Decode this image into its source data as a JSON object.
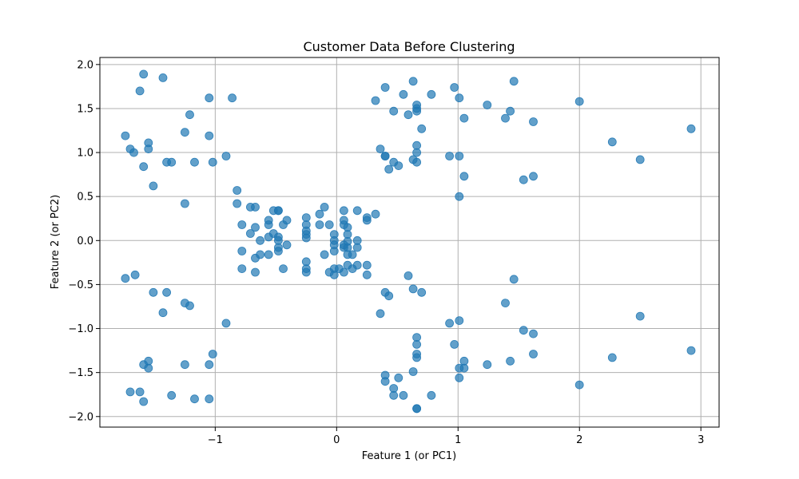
{
  "chart_data": {
    "type": "scatter",
    "title": "Customer Data Before Clustering",
    "xlabel": "Feature 1 (or PC1)",
    "ylabel": "Feature 2 (or PC2)",
    "xlim": [
      -1.95,
      3.15
    ],
    "ylim": [
      -2.12,
      2.08
    ],
    "xticks": [
      -1,
      0,
      1,
      2,
      3
    ],
    "xtick_labels": [
      "−1",
      "0",
      "1",
      "2",
      "3"
    ],
    "yticks": [
      -2.0,
      -1.5,
      -1.0,
      -0.5,
      0.0,
      0.5,
      1.0,
      1.5,
      2.0
    ],
    "ytick_labels": [
      "−2.0",
      "−1.5",
      "−1.0",
      "−0.5",
      "0.0",
      "0.5",
      "1.0",
      "1.5",
      "2.0"
    ],
    "grid": true,
    "legend": "none",
    "point_color": "#1f77b4",
    "point_opacity": 0.7,
    "points": [
      [
        -1.59,
        1.89
      ],
      [
        -1.43,
        1.85
      ],
      [
        -1.62,
        1.7
      ],
      [
        -1.05,
        1.62
      ],
      [
        -0.86,
        1.62
      ],
      [
        -1.21,
        1.43
      ],
      [
        -1.25,
        1.23
      ],
      [
        -1.05,
        1.19
      ],
      [
        -1.74,
        1.19
      ],
      [
        -1.55,
        1.11
      ],
      [
        -1.7,
        1.04
      ],
      [
        -1.55,
        1.04
      ],
      [
        -1.67,
        1.0
      ],
      [
        -0.91,
        0.96
      ],
      [
        -1.4,
        0.89
      ],
      [
        -1.36,
        0.89
      ],
      [
        -1.17,
        0.89
      ],
      [
        -1.02,
        0.89
      ],
      [
        -1.59,
        0.84
      ],
      [
        -1.51,
        0.62
      ],
      [
        -1.25,
        0.42
      ],
      [
        -1.74,
        -0.43
      ],
      [
        -1.66,
        -0.39
      ],
      [
        -1.51,
        -0.59
      ],
      [
        -1.4,
        -0.59
      ],
      [
        -1.25,
        -0.71
      ],
      [
        -1.21,
        -0.74
      ],
      [
        -1.43,
        -0.82
      ],
      [
        -0.91,
        -0.94
      ],
      [
        -1.02,
        -1.29
      ],
      [
        -1.55,
        -1.37
      ],
      [
        -1.59,
        -1.41
      ],
      [
        -1.25,
        -1.41
      ],
      [
        -1.05,
        -1.41
      ],
      [
        -1.55,
        -1.45
      ],
      [
        -1.7,
        -1.72
      ],
      [
        -1.62,
        -1.72
      ],
      [
        -1.36,
        -1.76
      ],
      [
        -1.17,
        -1.8
      ],
      [
        -1.05,
        -1.8
      ],
      [
        -1.59,
        -1.83
      ],
      [
        -0.82,
        0.57
      ],
      [
        -0.82,
        0.42
      ],
      [
        -0.71,
        0.38
      ],
      [
        -0.67,
        0.38
      ],
      [
        -0.52,
        0.34
      ],
      [
        -0.48,
        0.34
      ],
      [
        -0.48,
        0.34
      ],
      [
        -0.1,
        0.38
      ],
      [
        0.06,
        0.34
      ],
      [
        0.17,
        0.34
      ],
      [
        -0.14,
        0.3
      ],
      [
        0.32,
        0.3
      ],
      [
        0.25,
        0.26
      ],
      [
        -0.25,
        0.26
      ],
      [
        -0.56,
        0.23
      ],
      [
        -0.41,
        0.23
      ],
      [
        0.06,
        0.23
      ],
      [
        0.25,
        0.23
      ],
      [
        -0.78,
        0.18
      ],
      [
        -0.56,
        0.18
      ],
      [
        -0.44,
        0.18
      ],
      [
        -0.25,
        0.18
      ],
      [
        -0.14,
        0.18
      ],
      [
        -0.06,
        0.18
      ],
      [
        0.06,
        0.18
      ],
      [
        -0.67,
        0.15
      ],
      [
        0.09,
        0.15
      ],
      [
        -0.25,
        0.11
      ],
      [
        -0.71,
        0.08
      ],
      [
        -0.52,
        0.08
      ],
      [
        -0.25,
        0.07
      ],
      [
        -0.02,
        0.07
      ],
      [
        0.09,
        0.07
      ],
      [
        -0.56,
        0.04
      ],
      [
        -0.48,
        0.04
      ],
      [
        -0.25,
        0.03
      ],
      [
        -0.63,
        0.0
      ],
      [
        -0.48,
        0.0
      ],
      [
        -0.02,
        0.0
      ],
      [
        0.17,
        0.0
      ],
      [
        0.09,
        -0.01
      ],
      [
        -0.41,
        -0.05
      ],
      [
        -0.02,
        -0.05
      ],
      [
        0.06,
        -0.05
      ],
      [
        -0.48,
        -0.08
      ],
      [
        0.06,
        -0.08
      ],
      [
        0.09,
        -0.08
      ],
      [
        0.17,
        -0.08
      ],
      [
        -0.78,
        -0.12
      ],
      [
        -0.48,
        -0.12
      ],
      [
        -0.02,
        -0.12
      ],
      [
        -0.63,
        -0.16
      ],
      [
        -0.56,
        -0.16
      ],
      [
        -0.1,
        -0.16
      ],
      [
        0.09,
        -0.16
      ],
      [
        0.13,
        -0.16
      ],
      [
        -0.67,
        -0.2
      ],
      [
        -0.25,
        -0.24
      ],
      [
        0.09,
        -0.28
      ],
      [
        0.17,
        -0.28
      ],
      [
        0.25,
        -0.28
      ],
      [
        -0.78,
        -0.32
      ],
      [
        -0.44,
        -0.32
      ],
      [
        -0.25,
        -0.32
      ],
      [
        -0.02,
        -0.32
      ],
      [
        0.02,
        -0.32
      ],
      [
        0.13,
        -0.32
      ],
      [
        -0.25,
        -0.36
      ],
      [
        -0.67,
        -0.36
      ],
      [
        -0.06,
        -0.36
      ],
      [
        0.06,
        -0.36
      ],
      [
        -0.02,
        -0.39
      ],
      [
        0.25,
        -0.39
      ],
      [
        0.4,
        1.74
      ],
      [
        0.63,
        1.81
      ],
      [
        0.97,
        1.74
      ],
      [
        1.46,
        1.81
      ],
      [
        0.55,
        1.66
      ],
      [
        0.78,
        1.66
      ],
      [
        0.32,
        1.59
      ],
      [
        1.01,
        1.62
      ],
      [
        0.66,
        1.54
      ],
      [
        1.24,
        1.54
      ],
      [
        0.66,
        1.5
      ],
      [
        0.47,
        1.47
      ],
      [
        0.66,
        1.47
      ],
      [
        1.43,
        1.47
      ],
      [
        0.59,
        1.43
      ],
      [
        1.39,
        1.39
      ],
      [
        1.05,
        1.39
      ],
      [
        1.62,
        1.35
      ],
      [
        0.7,
        1.27
      ],
      [
        2.0,
        1.58
      ],
      [
        0.66,
        1.08
      ],
      [
        0.36,
        1.04
      ],
      [
        0.66,
        1.0
      ],
      [
        0.4,
        0.96
      ],
      [
        0.4,
        0.96
      ],
      [
        0.93,
        0.96
      ],
      [
        1.01,
        0.96
      ],
      [
        0.63,
        0.92
      ],
      [
        0.47,
        0.89
      ],
      [
        0.66,
        0.89
      ],
      [
        0.51,
        0.85
      ],
      [
        0.43,
        0.81
      ],
      [
        1.05,
        0.73
      ],
      [
        1.62,
        0.73
      ],
      [
        1.54,
        0.69
      ],
      [
        1.01,
        0.5
      ],
      [
        2.27,
        1.12
      ],
      [
        2.5,
        0.92
      ],
      [
        2.92,
        1.27
      ],
      [
        0.59,
        -0.4
      ],
      [
        1.46,
        -0.44
      ],
      [
        0.63,
        -0.55
      ],
      [
        0.4,
        -0.59
      ],
      [
        0.7,
        -0.59
      ],
      [
        0.43,
        -0.63
      ],
      [
        1.39,
        -0.71
      ],
      [
        0.36,
        -0.83
      ],
      [
        1.01,
        -0.91
      ],
      [
        0.93,
        -0.94
      ],
      [
        1.54,
        -1.02
      ],
      [
        1.62,
        -1.06
      ],
      [
        0.66,
        -1.1
      ],
      [
        0.97,
        -1.18
      ],
      [
        0.66,
        -1.18
      ],
      [
        0.66,
        -1.29
      ],
      [
        1.62,
        -1.29
      ],
      [
        0.66,
        -1.33
      ],
      [
        1.05,
        -1.37
      ],
      [
        1.43,
        -1.37
      ],
      [
        1.24,
        -1.41
      ],
      [
        1.01,
        -1.45
      ],
      [
        1.05,
        -1.45
      ],
      [
        0.63,
        -1.49
      ],
      [
        0.4,
        -1.53
      ],
      [
        1.01,
        -1.56
      ],
      [
        0.51,
        -1.56
      ],
      [
        0.4,
        -1.6
      ],
      [
        0.47,
        -1.68
      ],
      [
        0.47,
        -1.76
      ],
      [
        0.55,
        -1.76
      ],
      [
        0.78,
        -1.76
      ],
      [
        0.66,
        -1.91
      ],
      [
        0.66,
        -1.91
      ],
      [
        2.0,
        -1.64
      ],
      [
        2.27,
        -1.33
      ],
      [
        2.5,
        -0.86
      ],
      [
        2.92,
        -1.25
      ]
    ]
  }
}
